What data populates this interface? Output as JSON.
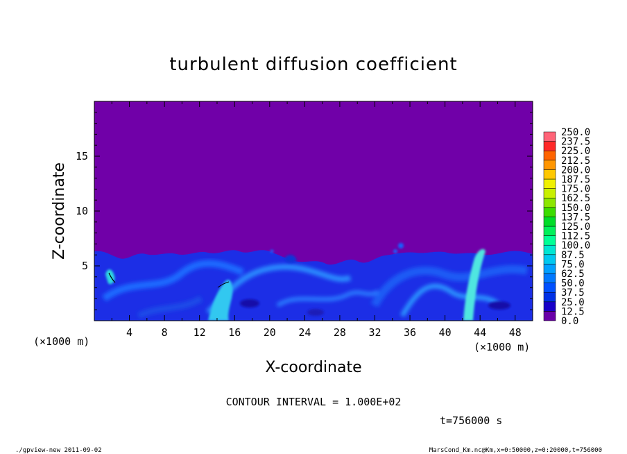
{
  "chart_data": {
    "type": "heatmap",
    "title": "turbulent diffusion coefficient",
    "xlabel": "X-coordinate",
    "ylabel": "Z-coordinate",
    "x_units": "(×1000 m)",
    "y_units": "(×1000 m)",
    "xlim": [
      0,
      50
    ],
    "ylim": [
      0,
      20
    ],
    "x_ticks": [
      4,
      8,
      12,
      16,
      20,
      24,
      28,
      32,
      36,
      40,
      44,
      48
    ],
    "y_ticks": [
      5,
      10,
      15
    ],
    "grid": false,
    "contour_interval_text": "CONTOUR INTERVAL = 1.000E+02",
    "time_text": "t=756000 s",
    "colorbar": {
      "levels": [
        "0.0",
        "12.5",
        "25.0",
        "37.5",
        "50.0",
        "62.5",
        "75.0",
        "87.5",
        "100.0",
        "112.5",
        "125.0",
        "137.5",
        "150.0",
        "162.5",
        "175.0",
        "187.5",
        "200.0",
        "212.5",
        "225.0",
        "237.5",
        "250.0"
      ],
      "colors": [
        "#6a00a8",
        "#1800c8",
        "#0030e6",
        "#0050ff",
        "#0078ff",
        "#00a0ff",
        "#00c8f0",
        "#00e6d2",
        "#00ff96",
        "#00f05a",
        "#00dc28",
        "#3cdc00",
        "#8ce600",
        "#c8f000",
        "#f0f000",
        "#ffc800",
        "#ff9600",
        "#ff6400",
        "#ff2828",
        "#ff6478"
      ]
    },
    "background_color": "#7000a8"
  },
  "footer": {
    "left": "./gpview-new  2011-09-02",
    "right": "MarsCond_Km.nc@Km,x=0:50000,z=0:20000,t=756000"
  }
}
